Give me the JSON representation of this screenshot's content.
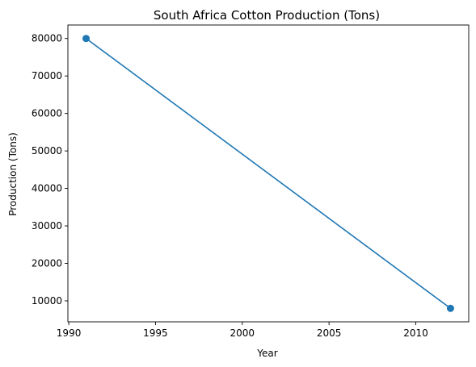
{
  "chart_data": {
    "type": "line",
    "title": "South Africa Cotton Production (Tons)",
    "xlabel": "Year",
    "ylabel": "Production (Tons)",
    "x": [
      1991,
      2012
    ],
    "series": [
      {
        "values": [
          80000,
          8000
        ],
        "color": "#1f77b4",
        "marker": "circle"
      }
    ],
    "xlim": [
      1989.95,
      2013.05
    ],
    "ylim": [
      4400,
      83600
    ],
    "xticks": [
      1990,
      1995,
      2000,
      2005,
      2010
    ],
    "yticks": [
      10000,
      20000,
      30000,
      40000,
      50000,
      60000,
      70000,
      80000
    ],
    "grid": false,
    "legend": "none"
  }
}
